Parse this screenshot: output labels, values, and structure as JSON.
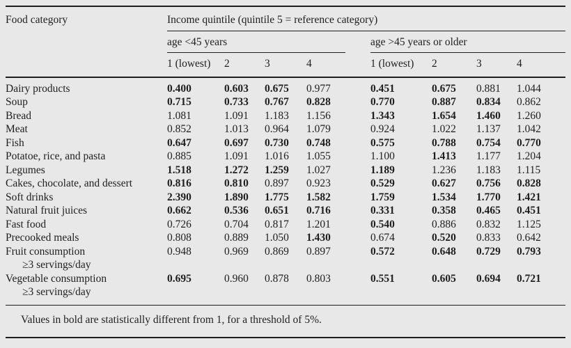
{
  "colors": {
    "background": "#e8e8e8",
    "text": "#1e1e1e",
    "rule": "#1e1e1e"
  },
  "table": {
    "col_header": "Food category",
    "span_header": "Income quintile (quintile 5 = reference category)",
    "groups": [
      {
        "label": "age <45 years",
        "columns": [
          "1 (lowest)",
          "2",
          "3",
          "4"
        ]
      },
      {
        "label": "age >45 years or older",
        "columns": [
          "1 (lowest)",
          "2",
          "3",
          "4"
        ]
      }
    ],
    "rows": [
      {
        "category": "Dairy products",
        "values": [
          "0.400",
          "0.603",
          "0.675",
          "0.977",
          "0.451",
          "0.675",
          "0.881",
          "1.044"
        ],
        "bold": [
          true,
          true,
          true,
          false,
          true,
          true,
          false,
          false
        ]
      },
      {
        "category": "Soup",
        "values": [
          "0.715",
          "0.733",
          "0.767",
          "0.828",
          "0.770",
          "0.887",
          "0.834",
          "0.862"
        ],
        "bold": [
          true,
          true,
          true,
          true,
          true,
          true,
          true,
          false
        ]
      },
      {
        "category": "Bread",
        "values": [
          "1.081",
          "1.091",
          "1.183",
          "1.156",
          "1.343",
          "1.654",
          "1.460",
          "1.260"
        ],
        "bold": [
          false,
          false,
          false,
          false,
          true,
          true,
          true,
          false
        ]
      },
      {
        "category": "Meat",
        "values": [
          "0.852",
          "1.013",
          "0.964",
          "1.079",
          "0.924",
          "1.022",
          "1.137",
          "1.042"
        ],
        "bold": [
          false,
          false,
          false,
          false,
          false,
          false,
          false,
          false
        ]
      },
      {
        "category": "Fish",
        "values": [
          "0.647",
          "0.697",
          "0.730",
          "0.748",
          "0.575",
          "0.788",
          "0.754",
          "0.770"
        ],
        "bold": [
          true,
          true,
          true,
          true,
          true,
          true,
          true,
          true
        ]
      },
      {
        "category": "Potatoe, rice, and pasta",
        "values": [
          "0.885",
          "1.091",
          "1.016",
          "1.055",
          "1.100",
          "1.413",
          "1.177",
          "1.204"
        ],
        "bold": [
          false,
          false,
          false,
          false,
          false,
          true,
          false,
          false
        ]
      },
      {
        "category": "Legumes",
        "values": [
          "1.518",
          "1.272",
          "1.259",
          "1.027",
          "1.189",
          "1.236",
          "1.183",
          "1.115"
        ],
        "bold": [
          true,
          true,
          true,
          false,
          true,
          false,
          false,
          false
        ]
      },
      {
        "category": "Cakes, chocolate, and dessert",
        "values": [
          "0.816",
          "0.810",
          "0.897",
          "0.923",
          "0.529",
          "0.627",
          "0.756",
          "0.828"
        ],
        "bold": [
          true,
          true,
          false,
          false,
          true,
          true,
          true,
          true
        ]
      },
      {
        "category": "Soft drinks",
        "values": [
          "2.390",
          "1.890",
          "1.775",
          "1.582",
          "1.759",
          "1.534",
          "1.770",
          "1.421"
        ],
        "bold": [
          true,
          true,
          true,
          true,
          true,
          true,
          true,
          true
        ]
      },
      {
        "category": "Natural fruit juices",
        "values": [
          "0.662",
          "0.536",
          "0.651",
          "0.716",
          "0.331",
          "0.358",
          "0.465",
          "0.451"
        ],
        "bold": [
          true,
          true,
          true,
          true,
          true,
          true,
          true,
          true
        ]
      },
      {
        "category": "Fast food",
        "values": [
          "0.726",
          "0.704",
          "0.817",
          "1.201",
          "0.540",
          "0.886",
          "0.832",
          "1.125"
        ],
        "bold": [
          false,
          false,
          false,
          false,
          true,
          false,
          false,
          false
        ]
      },
      {
        "category": "Precooked meals",
        "values": [
          "0.808",
          "0.889",
          "1.050",
          "1.430",
          "0.674",
          "0.520",
          "0.833",
          "0.642"
        ],
        "bold": [
          false,
          false,
          false,
          true,
          false,
          true,
          false,
          false
        ]
      },
      {
        "category": "Fruit consumption",
        "category_line2": "≥3 servings/day",
        "values": [
          "0.948",
          "0.969",
          "0.869",
          "0.897",
          "0.572",
          "0.648",
          "0.729",
          "0.793"
        ],
        "bold": [
          false,
          false,
          false,
          false,
          true,
          true,
          true,
          true
        ]
      },
      {
        "category": "Vegetable consumption",
        "category_line2": "≥3 servings/day",
        "values": [
          "0.695",
          "0.960",
          "0.878",
          "0.803",
          "0.551",
          "0.605",
          "0.694",
          "0.721"
        ],
        "bold": [
          true,
          false,
          false,
          false,
          true,
          true,
          true,
          true
        ]
      }
    ],
    "footnote": "Values in bold are statistically different from 1, for a threshold of 5%."
  }
}
